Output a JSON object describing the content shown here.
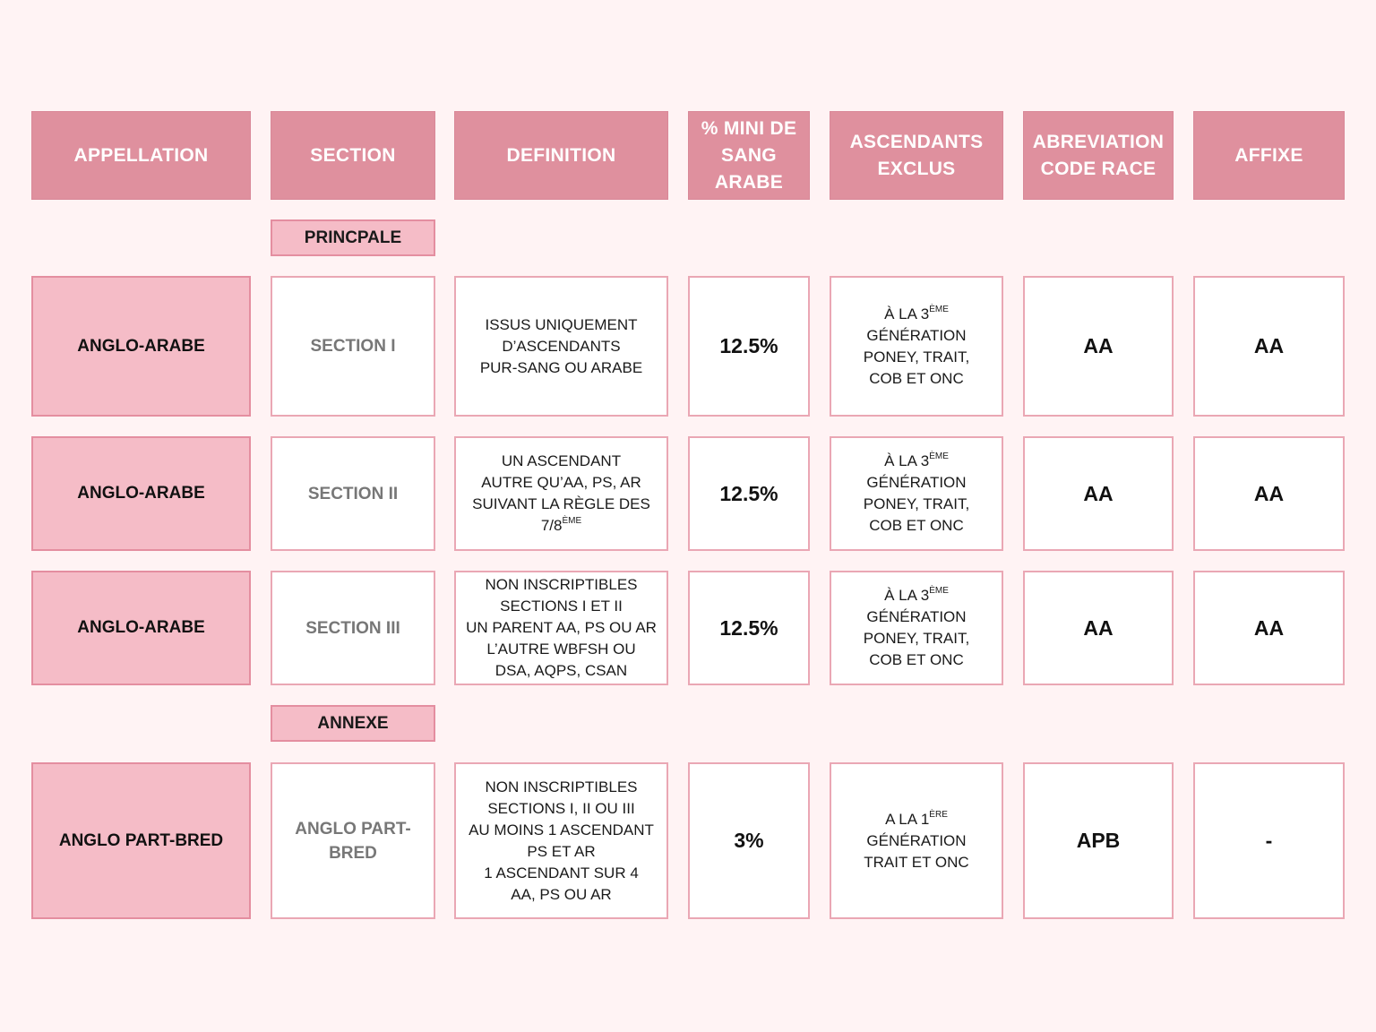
{
  "header": {
    "appellation": "APPELLATION",
    "section": "SECTION",
    "definition": "DEFINITION",
    "mini_sang_line1": "% MINI DE",
    "mini_sang_line2": "SANG",
    "mini_sang_line3": "ARABE",
    "ascendants_line1": "ASCENDANTS",
    "ascendants_line2": "EXCLUS",
    "abreviation_line1": "ABREVIATION",
    "abreviation_line2": "CODE RACE",
    "affixe": "AFFIXE"
  },
  "groups": {
    "principale": "PRINCPALE",
    "annexe": "ANNEXE"
  },
  "rows": [
    {
      "appellation": "ANGLO-ARABE",
      "section": "SECTION I",
      "definition_lines": [
        "ISSUS UNIQUEMENT",
        "D’ASCENDANTS",
        "PUR-SANG OU ARABE"
      ],
      "mini_sang": "12.5%",
      "exclus_prefix": "À LA 3",
      "exclus_sup": "ÈME",
      "exclus_lines": [
        "GÉNÉRATION",
        "PONEY, TRAIT,",
        "COB ET ONC"
      ],
      "abreviation": "AA",
      "affixe": "AA"
    },
    {
      "appellation": "ANGLO-ARABE",
      "section": "SECTION II",
      "definition_lines": [
        "UN ASCENDANT",
        "AUTRE QU’AA, PS, AR",
        "SUIVANT LA RÈGLE DES"
      ],
      "definition_last": "7/8",
      "definition_sup": "ÈME",
      "mini_sang": "12.5%",
      "exclus_prefix": "À LA 3",
      "exclus_sup": "ÈME",
      "exclus_lines": [
        "GÉNÉRATION",
        "PONEY, TRAIT,",
        "COB ET ONC"
      ],
      "abreviation": "AA",
      "affixe": "AA"
    },
    {
      "appellation": "ANGLO-ARABE",
      "section": "SECTION III",
      "definition_lines": [
        "NON INSCRIPTIBLES",
        "SECTIONS I ET II",
        "UN PARENT AA, PS OU AR",
        "L’AUTRE WBFSH OU",
        "DSA, AQPS, CSAN"
      ],
      "mini_sang": "12.5%",
      "exclus_prefix": "À LA 3",
      "exclus_sup": "ÈME",
      "exclus_lines": [
        "GÉNÉRATION",
        "PONEY, TRAIT,",
        "COB ET ONC"
      ],
      "abreviation": "AA",
      "affixe": "AA"
    },
    {
      "appellation": "ANGLO PART-BRED",
      "section_line1": "ANGLO PART-",
      "section_line2": "BRED",
      "definition_lines": [
        "NON INSCRIPTIBLES",
        "SECTIONS I, II OU III",
        "AU MOINS 1 ASCENDANT",
        "PS ET AR",
        "1 ASCENDANT SUR 4",
        "AA, PS OU AR"
      ],
      "mini_sang": "3%",
      "exclus_prefix": "A LA 1",
      "exclus_sup": "ÈRE",
      "exclus_lines": [
        "GÉNÉRATION",
        "TRAIT ET ONC"
      ],
      "abreviation": "APB",
      "affixe": "-"
    }
  ]
}
